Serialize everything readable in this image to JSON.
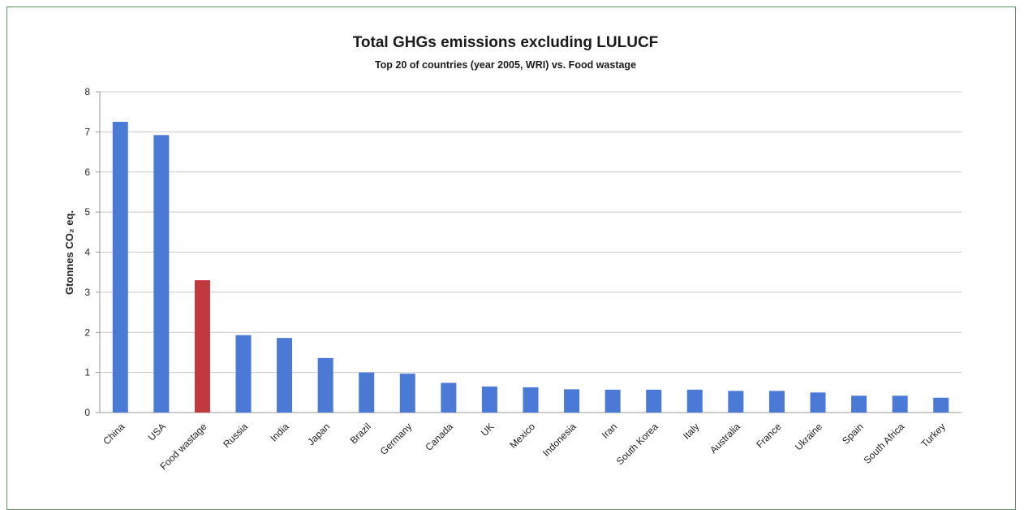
{
  "chart_data": {
    "type": "bar",
    "title": "Total GHGs emissions excluding LULUCF",
    "subtitle": "Top 20 of countries (year 2005, WRI) vs. Food wastage",
    "xlabel": "",
    "ylabel": "Gtonnes CO₂ eq.",
    "ylim": [
      0,
      8
    ],
    "yticks": [
      0,
      1,
      2,
      3,
      4,
      5,
      6,
      7,
      8
    ],
    "grid": true,
    "categories": [
      "China",
      "USA",
      "Food wastage",
      "Russia",
      "India",
      "Japan",
      "Brazil",
      "Germany",
      "Canada",
      "UK",
      "Mexico",
      "Indonesia",
      "Iran",
      "South Korea",
      "Italy",
      "Australia",
      "France",
      "Ukraine",
      "Spain",
      "South Africa",
      "Turkey"
    ],
    "values": [
      7.25,
      6.92,
      3.3,
      1.93,
      1.86,
      1.36,
      1.0,
      0.97,
      0.74,
      0.65,
      0.63,
      0.58,
      0.57,
      0.57,
      0.57,
      0.54,
      0.54,
      0.5,
      0.42,
      0.42,
      0.37
    ],
    "highlight_category": "Food wastage",
    "colors": {
      "bar": "#4a79d6",
      "highlight": "#c0393d",
      "grid": "#c9c9c9",
      "axis": "#9a9a9a"
    }
  }
}
